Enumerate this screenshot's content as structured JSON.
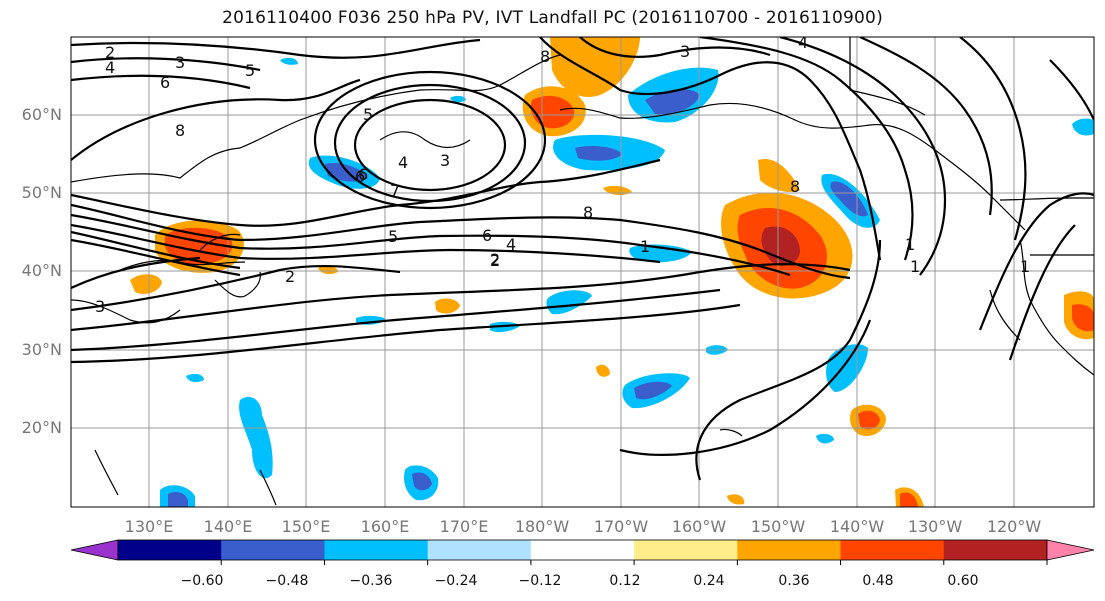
{
  "figure": {
    "title": "2016110400 F036 250 hPa PV, IVT Landfall PC (2016110700 - 2016110900)"
  },
  "axes": {
    "lat_ticks": [
      "20°N",
      "30°N",
      "40°N",
      "50°N",
      "60°N"
    ],
    "lon_ticks": [
      "130°E",
      "140°E",
      "150°E",
      "160°E",
      "170°E",
      "180°W",
      "170°W",
      "160°W",
      "150°W",
      "140°W",
      "130°W",
      "120°W"
    ]
  },
  "contour_labels": [
    "2",
    "4",
    "3",
    "5",
    "6",
    "8",
    "3",
    "8",
    "3",
    "6",
    "4",
    "5",
    "6",
    "7",
    "5",
    "6",
    "4",
    "2",
    "1",
    "8",
    "2",
    "3",
    "1",
    "1",
    "1",
    "8",
    "2",
    "4"
  ],
  "colorbar": {
    "colors": [
      "#9a32cd",
      "#00008b",
      "#3a5fcd",
      "#00bfff",
      "#b0e2ff",
      "#ffffff",
      "#ffec8b",
      "#ffa500",
      "#ff4500",
      "#b22222",
      "#ff82ab"
    ],
    "tick_labels": [
      "−0.60",
      "−0.48",
      "−0.36",
      "−0.24",
      "−0.12",
      "0.12",
      "0.24",
      "0.36",
      "0.48",
      "0.60"
    ],
    "tick_values": [
      -0.6,
      -0.48,
      -0.36,
      -0.24,
      -0.12,
      0.12,
      0.24,
      0.36,
      0.48,
      0.6
    ]
  },
  "colors": {
    "ocean": "#ffffff",
    "grid": "#999999",
    "contour": "#000000"
  }
}
